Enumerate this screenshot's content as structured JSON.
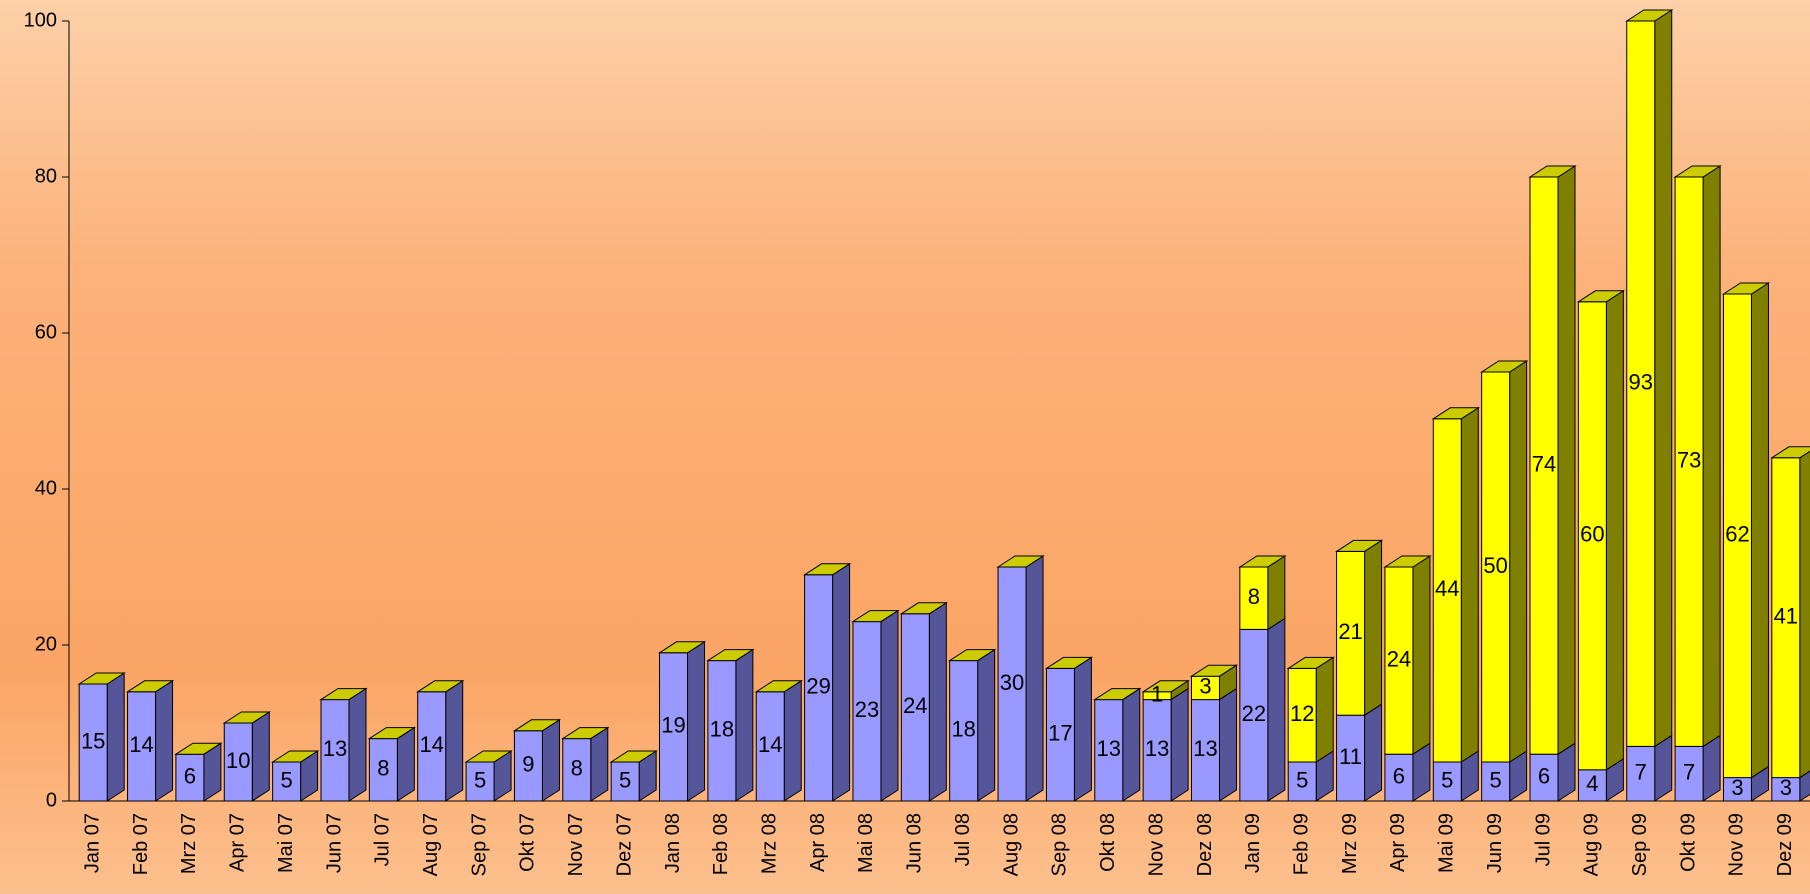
{
  "chart_data": {
    "type": "stacked-bar",
    "categories": [
      "Jan 07",
      "Feb 07",
      "Mrz 07",
      "Apr 07",
      "Mai 07",
      "Jun 07",
      "Jul 07",
      "Aug 07",
      "Sep 07",
      "Okt 07",
      "Nov 07",
      "Dez 07",
      "Jan 08",
      "Feb 08",
      "Mrz 08",
      "Apr 08",
      "Mai 08",
      "Jun 08",
      "Jul 08",
      "Aug 08",
      "Sep 08",
      "Okt 08",
      "Nov 08",
      "Dez 08",
      "Jan 09",
      "Feb 09",
      "Mrz 09",
      "Apr 09",
      "Mai 09",
      "Jun 09",
      "Jul 09",
      "Aug 09",
      "Sep 09",
      "Okt 09",
      "Nov 09",
      "Dez 09"
    ],
    "series": [
      {
        "color": "#9999ff",
        "side_color": "#555599",
        "values": [
          15,
          14,
          6,
          10,
          5,
          13,
          8,
          14,
          5,
          9,
          8,
          5,
          19,
          18,
          14,
          29,
          23,
          24,
          18,
          30,
          17,
          13,
          13,
          13,
          22,
          5,
          11,
          6,
          5,
          5,
          6,
          4,
          7,
          7,
          3,
          3
        ]
      },
      {
        "color": "#ffff00",
        "side_color": "#808000",
        "values": [
          null,
          null,
          null,
          null,
          null,
          null,
          null,
          null,
          null,
          null,
          null,
          null,
          null,
          null,
          null,
          null,
          null,
          null,
          null,
          null,
          null,
          null,
          1,
          3,
          8,
          12,
          21,
          24,
          44,
          50,
          74,
          60,
          93,
          73,
          62,
          41
        ]
      }
    ],
    "top_color": "#cccc00",
    "ylim": [
      0,
      100
    ],
    "yticks": [
      0,
      20,
      40,
      60,
      80,
      100
    ]
  }
}
